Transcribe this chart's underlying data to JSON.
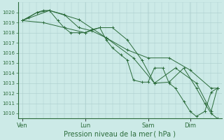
{
  "bg_color": "#cceae7",
  "grid_color": "#aacccc",
  "line_color": "#2a6b3a",
  "marker_color": "#2a6b3a",
  "xlabel": "Pression niveau de la mer ( hPa )",
  "ylim": [
    1009.5,
    1021.0
  ],
  "yticks": [
    1010,
    1011,
    1012,
    1013,
    1014,
    1015,
    1016,
    1017,
    1018,
    1019,
    1020
  ],
  "day_labels": [
    "Ven",
    "Lun",
    "Sam",
    "Dim"
  ],
  "day_positions": [
    0,
    3,
    6,
    8
  ],
  "xlim": [
    -0.2,
    9.5
  ],
  "series": [
    {
      "x": [
        0.0,
        0.3,
        0.7,
        1.0,
        1.3,
        1.7,
        2.0,
        2.3,
        2.7,
        3.0,
        3.3,
        3.7,
        4.0,
        4.3,
        4.7,
        5.0,
        5.3,
        5.7,
        6.0,
        6.3,
        6.7,
        7.0,
        7.3,
        7.7,
        8.0,
        8.3,
        8.7,
        9.0,
        9.3
      ],
      "y": [
        1019.2,
        1019.5,
        1020.0,
        1020.2,
        1020.2,
        1019.2,
        1018.5,
        1018.0,
        1018.0,
        1018.0,
        1018.3,
        1018.5,
        1017.3,
        1016.5,
        1015.8,
        1015.3,
        1013.3,
        1013.1,
        1013.1,
        1014.5,
        1014.5,
        1013.0,
        1012.5,
        1011.2,
        1010.2,
        1009.7,
        1010.2,
        1012.1,
        1012.5
      ]
    },
    {
      "x": [
        0.0,
        0.7,
        1.3,
        2.0,
        2.7,
        3.3,
        4.0,
        5.0,
        6.0,
        7.0,
        8.0,
        9.0,
        9.3
      ],
      "y": [
        1019.2,
        1020.0,
        1020.2,
        1019.8,
        1018.5,
        1018.2,
        1017.5,
        1016.3,
        1015.5,
        1015.5,
        1014.3,
        1012.5,
        1012.5
      ]
    },
    {
      "x": [
        0.0,
        1.0,
        2.0,
        3.0,
        3.7,
        4.3,
        5.0,
        5.7,
        6.3,
        7.0,
        7.7,
        8.3,
        8.7,
        9.0,
        9.3
      ],
      "y": [
        1019.2,
        1019.0,
        1018.5,
        1018.0,
        1018.5,
        1018.5,
        1017.3,
        1015.3,
        1013.0,
        1013.1,
        1014.5,
        1012.5,
        1011.0,
        1010.0,
        1009.5
      ]
    },
    {
      "x": [
        0.0,
        1.3,
        2.7,
        4.0,
        5.3,
        6.3,
        7.3,
        8.3,
        9.0,
        9.3
      ],
      "y": [
        1019.2,
        1020.2,
        1019.3,
        1017.5,
        1015.5,
        1013.0,
        1014.5,
        1013.0,
        1010.2,
        1012.5
      ]
    }
  ]
}
